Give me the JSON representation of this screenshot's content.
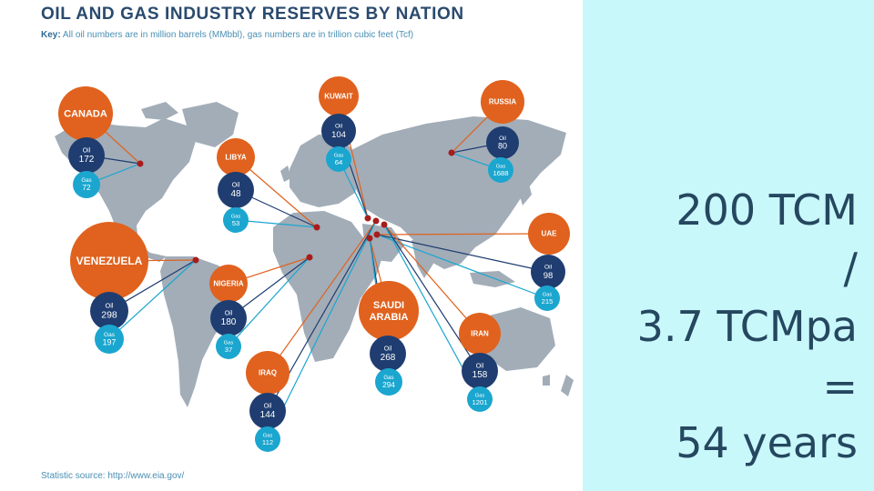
{
  "title": "OIL AND GAS INDUSTRY RESERVES BY NATION",
  "key": {
    "label": "Key:",
    "text": "All oil numbers are in million barrels (MMbbl), gas numbers are in trillion cubic feet (Tcf)"
  },
  "source": "Statistic source: http://www.eia.gov/",
  "colors": {
    "country": "#e0621e",
    "oil": "#1f3d70",
    "gas": "#1ba6cf",
    "land": "#a2adb8",
    "marker": "#a81c1c",
    "panel": "#c9f8fb",
    "calc_text": "#25475f"
  },
  "oil_label": "Oil",
  "gas_label": "Gas",
  "nations": [
    {
      "name": [
        "CANADA"
      ],
      "oil": "172",
      "gas": "72"
    },
    {
      "name": [
        "KUWAIT"
      ],
      "oil": "104",
      "gas": "64"
    },
    {
      "name": [
        "RUSSIA"
      ],
      "oil": "80",
      "gas": "1688"
    },
    {
      "name": [
        "LIBYA"
      ],
      "oil": "48",
      "gas": "53"
    },
    {
      "name": [
        "UAE"
      ],
      "oil": "98",
      "gas": "215"
    },
    {
      "name": [
        "VENEZUELA"
      ],
      "oil": "298",
      "gas": "197"
    },
    {
      "name": [
        "NIGERIA"
      ],
      "oil": "180",
      "gas": "37"
    },
    {
      "name": [
        "SAUDI",
        "ARABIA"
      ],
      "oil": "268",
      "gas": "294"
    },
    {
      "name": [
        "IRAN"
      ],
      "oil": "158",
      "gas": "1201"
    },
    {
      "name": [
        "IRAQ"
      ],
      "oil": "144",
      "gas": "112"
    }
  ],
  "calculation": {
    "line1": "200 TCM",
    "line2": "/",
    "line3": "3.7 TCMpa",
    "line4": "=",
    "line5": "54 years"
  }
}
